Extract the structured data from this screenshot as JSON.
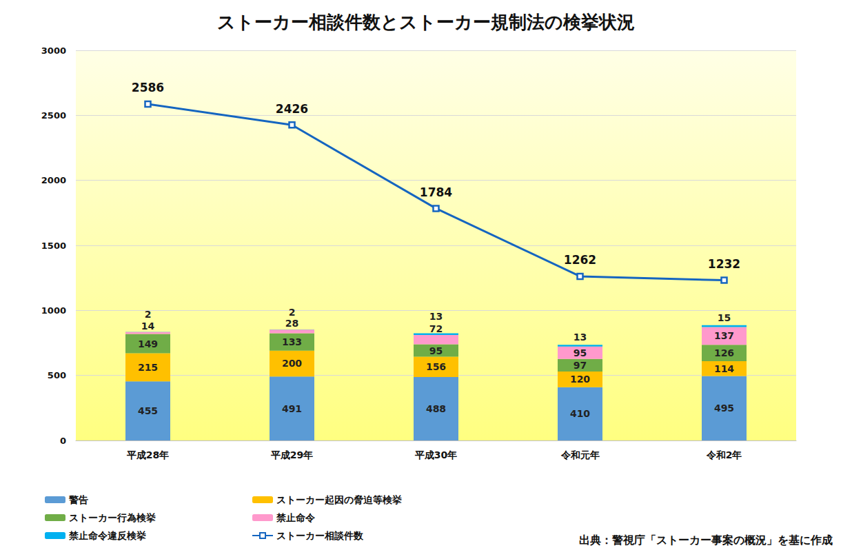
{
  "chart_data": {
    "type": "bar",
    "title": "ストーカー相談件数とストーカー規制法の検挙状況",
    "categories": [
      "平成28年",
      "平成29年",
      "平成30年",
      "令和元年",
      "令和2年"
    ],
    "series": [
      {
        "name": "警告",
        "color": "#5b9bd5",
        "type": "bar",
        "values": [
          455,
          491,
          488,
          410,
          495
        ]
      },
      {
        "name": "ストーカー起因の脅迫等検挙",
        "color": "#ffc000",
        "type": "bar",
        "values": [
          215,
          200,
          156,
          120,
          114
        ]
      },
      {
        "name": "ストーカー行為検挙",
        "color": "#70ad47",
        "type": "bar",
        "values": [
          149,
          133,
          95,
          97,
          126
        ]
      },
      {
        "name": "禁止命令",
        "color": "#ff99cc",
        "type": "bar",
        "values": [
          14,
          28,
          72,
          95,
          137
        ]
      },
      {
        "name": "禁止命令違反検挙",
        "color": "#00b0f0",
        "type": "bar",
        "values": [
          2,
          2,
          13,
          13,
          15
        ]
      },
      {
        "name": "ストーカー相談件数",
        "color": "#1565c0",
        "type": "line",
        "marker": "square",
        "values": [
          2586,
          2426,
          1784,
          1262,
          1232
        ]
      }
    ],
    "ylim": [
      0,
      3000
    ],
    "yticks": [
      0,
      500,
      1000,
      1500,
      2000,
      2500,
      3000
    ],
    "grid": true,
    "stacked": true,
    "data_labels": true,
    "legend": "bottom-left",
    "annotations": [
      "出典：警視庁「ストーカー事案の概況」を基に作成"
    ]
  }
}
